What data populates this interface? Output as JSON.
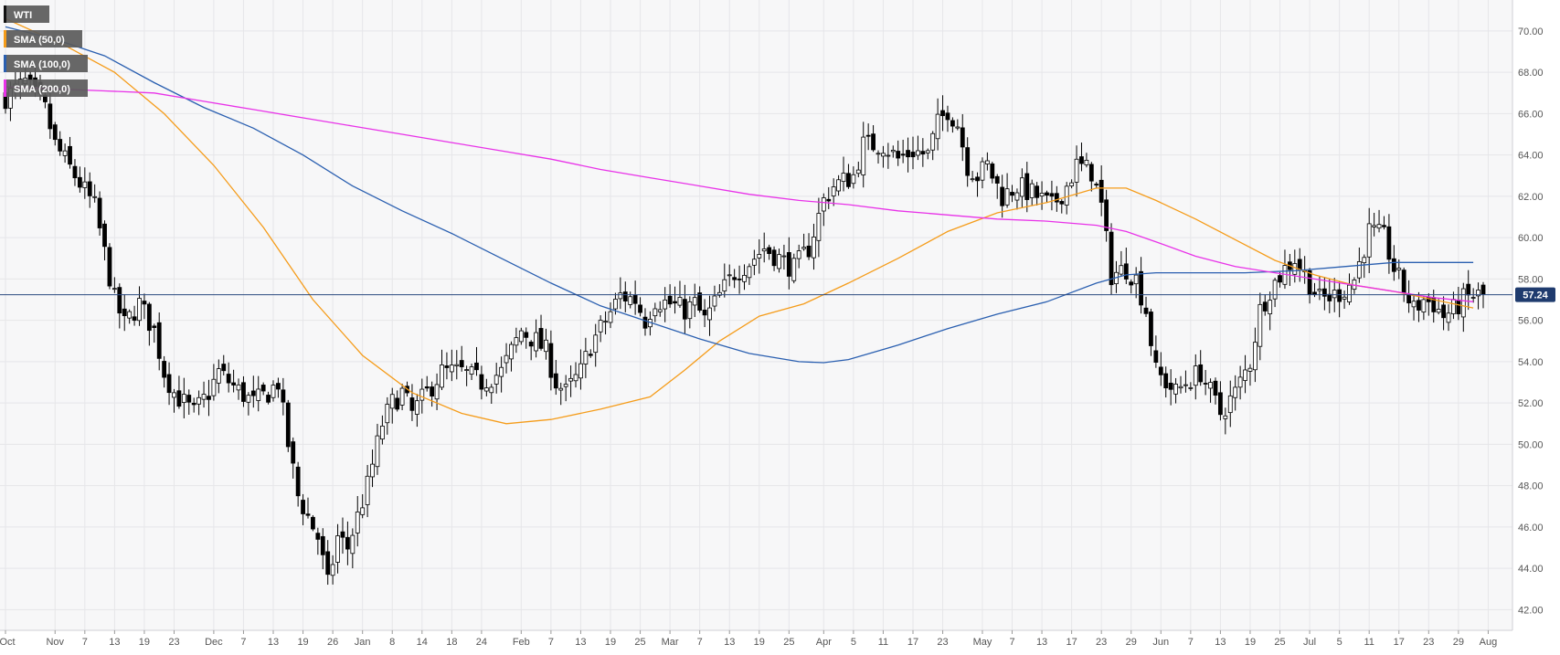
{
  "colors": {
    "background": "#f7f7f8",
    "grid": "#e6e6e9",
    "candle_up": "#ffffff",
    "candle_down": "#000000",
    "wick": "#000000",
    "sma50": "#f59c1a",
    "sma100": "#2a5fb0",
    "sma200": "#e832e8",
    "price_line": "#2b4a80",
    "price_badge": "#1f3b6e",
    "legend_box": "#5a5a5a"
  },
  "legend": [
    {
      "label": "WTI",
      "color": "#111111"
    },
    {
      "label": "SMA (50,0)",
      "color": "#f59c1a"
    },
    {
      "label": "SMA (100,0)",
      "color": "#2a5fb0"
    },
    {
      "label": "SMA (200,0)",
      "color": "#e832e8"
    }
  ],
  "price_badge": "57.24",
  "chart_data": {
    "type": "candlestick",
    "title": "",
    "xlabel": "",
    "ylabel": "",
    "ylim": [
      41,
      71.5
    ],
    "x_index_range": [
      0,
      298
    ],
    "y_ticks": [
      "42.00",
      "44.00",
      "46.00",
      "48.00",
      "50.00",
      "52.00",
      "54.00",
      "56.00",
      "58.00",
      "60.00",
      "62.00",
      "64.00",
      "66.00",
      "68.00",
      "70.00"
    ],
    "x_ticks": [
      {
        "label": "Oct",
        "i": 0
      },
      {
        "label": "Nov",
        "i": 10
      },
      {
        "label": "7",
        "i": 16
      },
      {
        "label": "13",
        "i": 22
      },
      {
        "label": "19",
        "i": 28
      },
      {
        "label": "23",
        "i": 34
      },
      {
        "label": "Dec",
        "i": 42
      },
      {
        "label": "7",
        "i": 48
      },
      {
        "label": "13",
        "i": 54
      },
      {
        "label": "19",
        "i": 60
      },
      {
        "label": "26",
        "i": 66
      },
      {
        "label": "Jan",
        "i": 72
      },
      {
        "label": "8",
        "i": 78
      },
      {
        "label": "14",
        "i": 84
      },
      {
        "label": "18",
        "i": 90
      },
      {
        "label": "24",
        "i": 96
      },
      {
        "label": "Feb",
        "i": 104
      },
      {
        "label": "7",
        "i": 110
      },
      {
        "label": "13",
        "i": 116
      },
      {
        "label": "19",
        "i": 122
      },
      {
        "label": "25",
        "i": 128
      },
      {
        "label": "Mar",
        "i": 134
      },
      {
        "label": "7",
        "i": 140
      },
      {
        "label": "13",
        "i": 146
      },
      {
        "label": "19",
        "i": 152
      },
      {
        "label": "25",
        "i": 158
      },
      {
        "label": "Apr",
        "i": 165
      },
      {
        "label": "5",
        "i": 171
      },
      {
        "label": "11",
        "i": 177
      },
      {
        "label": "17",
        "i": 183
      },
      {
        "label": "23",
        "i": 189
      },
      {
        "label": "May",
        "i": 197
      },
      {
        "label": "7",
        "i": 203
      },
      {
        "label": "13",
        "i": 209
      },
      {
        "label": "17",
        "i": 215
      },
      {
        "label": "23",
        "i": 221
      },
      {
        "label": "29",
        "i": 227
      },
      {
        "label": "Jun",
        "i": 233
      },
      {
        "label": "7",
        "i": 239
      },
      {
        "label": "13",
        "i": 245
      },
      {
        "label": "19",
        "i": 251
      },
      {
        "label": "25",
        "i": 257
      },
      {
        "label": "Jul",
        "i": 263
      },
      {
        "label": "5",
        "i": 269
      },
      {
        "label": "11",
        "i": 275
      },
      {
        "label": "17",
        "i": 281
      },
      {
        "label": "23",
        "i": 287
      },
      {
        "label": "29",
        "i": 293
      },
      {
        "label": "Aug",
        "i": 299
      }
    ],
    "last_price": 57.24,
    "candles_anchor": {
      "close_path": [
        [
          0,
          66.8
        ],
        [
          4,
          67.5
        ],
        [
          8,
          66.2
        ],
        [
          10,
          64.5
        ],
        [
          14,
          63.0
        ],
        [
          18,
          61.5
        ],
        [
          22,
          57.0
        ],
        [
          24,
          55.8
        ],
        [
          27,
          56.8
        ],
        [
          30,
          55.5
        ],
        [
          32,
          53.5
        ],
        [
          34,
          52.5
        ],
        [
          38,
          51.5
        ],
        [
          41,
          52.5
        ],
        [
          43,
          53.5
        ],
        [
          46,
          52.8
        ],
        [
          50,
          52.0
        ],
        [
          53,
          52.5
        ],
        [
          55,
          53.0
        ],
        [
          57,
          50.0
        ],
        [
          59,
          47.5
        ],
        [
          61,
          46.5
        ],
        [
          63,
          45.5
        ],
        [
          65,
          43.2
        ],
        [
          67,
          45.5
        ],
        [
          69,
          45.0
        ],
        [
          71,
          46.5
        ],
        [
          73,
          48.0
        ],
        [
          76,
          51.0
        ],
        [
          78,
          52.0
        ],
        [
          80,
          52.5
        ],
        [
          82,
          51.5
        ],
        [
          85,
          52.5
        ],
        [
          88,
          53.5
        ],
        [
          92,
          53.5
        ],
        [
          96,
          53.0
        ],
        [
          100,
          53.5
        ],
        [
          104,
          55.5
        ],
        [
          107,
          55.0
        ],
        [
          109,
          54.5
        ],
        [
          111,
          53.0
        ],
        [
          113,
          52.5
        ],
        [
          116,
          53.5
        ],
        [
          118,
          54.8
        ],
        [
          121,
          56.0
        ],
        [
          124,
          57.2
        ],
        [
          127,
          57.0
        ],
        [
          129,
          56.0
        ],
        [
          131,
          57.0
        ],
        [
          134,
          56.8
        ],
        [
          137,
          56.5
        ],
        [
          139,
          56.8
        ],
        [
          141,
          56.0
        ],
        [
          144,
          57.2
        ],
        [
          147,
          58.3
        ],
        [
          150,
          58.8
        ],
        [
          153,
          59.5
        ],
        [
          156,
          59.0
        ],
        [
          159,
          58.5
        ],
        [
          162,
          59.5
        ],
        [
          165,
          61.8
        ],
        [
          167,
          62.5
        ],
        [
          171,
          63.0
        ],
        [
          173,
          64.5
        ],
        [
          177,
          64.5
        ],
        [
          180,
          63.8
        ],
        [
          183,
          64.2
        ],
        [
          186,
          64.0
        ],
        [
          188,
          65.5
        ],
        [
          190,
          66.2
        ],
        [
          192,
          65.5
        ],
        [
          194,
          63.5
        ],
        [
          196,
          63.0
        ],
        [
          198,
          63.5
        ],
        [
          201,
          62.0
        ],
        [
          204,
          62.5
        ],
        [
          208,
          62.0
        ],
        [
          211,
          61.5
        ],
        [
          214,
          62.5
        ],
        [
          216,
          63.5
        ],
        [
          219,
          63.2
        ],
        [
          221,
          61.5
        ],
        [
          223,
          58.2
        ],
        [
          226,
          58.5
        ],
        [
          228,
          58.0
        ],
        [
          230,
          56.5
        ],
        [
          232,
          53.5
        ],
        [
          234,
          53.0
        ],
        [
          236,
          52.5
        ],
        [
          238,
          53.0
        ],
        [
          241,
          53.5
        ],
        [
          243,
          52.5
        ],
        [
          245,
          51.5
        ],
        [
          248,
          52.5
        ],
        [
          251,
          54.0
        ],
        [
          253,
          56.5
        ],
        [
          255,
          57.5
        ],
        [
          258,
          58.5
        ],
        [
          260,
          59.0
        ],
        [
          263,
          57.8
        ],
        [
          265,
          57.0
        ],
        [
          268,
          57.2
        ],
        [
          270,
          57.5
        ],
        [
          272,
          58.0
        ],
        [
          275,
          60.3
        ],
        [
          278,
          60.0
        ],
        [
          280,
          58.5
        ],
        [
          282,
          57.5
        ],
        [
          284,
          56.5
        ],
        [
          286,
          57.0
        ],
        [
          288,
          56.8
        ],
        [
          290,
          56.2
        ],
        [
          292,
          56.5
        ],
        [
          294,
          57.0
        ],
        [
          296,
          57.2
        ]
      ]
    },
    "series": [
      {
        "name": "SMA (50,0)",
        "points": [
          [
            0,
            70.6
          ],
          [
            12,
            69.3
          ],
          [
            22,
            68.0
          ],
          [
            32,
            66.0
          ],
          [
            42,
            63.5
          ],
          [
            52,
            60.5
          ],
          [
            62,
            57.0
          ],
          [
            72,
            54.3
          ],
          [
            82,
            52.5
          ],
          [
            92,
            51.5
          ],
          [
            101,
            51.0
          ],
          [
            110,
            51.2
          ],
          [
            120,
            51.7
          ],
          [
            130,
            52.3
          ],
          [
            137,
            53.6
          ],
          [
            144,
            55.0
          ],
          [
            152,
            56.2
          ],
          [
            161,
            56.8
          ],
          [
            170,
            57.8
          ],
          [
            180,
            59.0
          ],
          [
            190,
            60.3
          ],
          [
            200,
            61.2
          ],
          [
            210,
            61.7
          ],
          [
            220,
            62.4
          ],
          [
            226,
            62.4
          ],
          [
            232,
            61.8
          ],
          [
            240,
            60.9
          ],
          [
            248,
            59.9
          ],
          [
            256,
            58.9
          ],
          [
            264,
            58.2
          ],
          [
            272,
            57.7
          ],
          [
            280,
            57.4
          ],
          [
            288,
            57.0
          ],
          [
            296,
            56.6
          ]
        ]
      },
      {
        "name": "SMA (100,0)",
        "points": [
          [
            0,
            70.2
          ],
          [
            10,
            69.6
          ],
          [
            20,
            68.8
          ],
          [
            30,
            67.5
          ],
          [
            40,
            66.3
          ],
          [
            50,
            65.3
          ],
          [
            60,
            64.0
          ],
          [
            70,
            62.5
          ],
          [
            80,
            61.3
          ],
          [
            90,
            60.2
          ],
          [
            100,
            59.0
          ],
          [
            110,
            57.8
          ],
          [
            120,
            56.7
          ],
          [
            130,
            55.9
          ],
          [
            140,
            55.1
          ],
          [
            150,
            54.4
          ],
          [
            160,
            54.0
          ],
          [
            165,
            53.95
          ],
          [
            170,
            54.1
          ],
          [
            180,
            54.8
          ],
          [
            190,
            55.6
          ],
          [
            200,
            56.3
          ],
          [
            210,
            56.9
          ],
          [
            220,
            57.8
          ],
          [
            226,
            58.2
          ],
          [
            232,
            58.3
          ],
          [
            240,
            58.3
          ],
          [
            250,
            58.3
          ],
          [
            260,
            58.4
          ],
          [
            270,
            58.6
          ],
          [
            280,
            58.8
          ],
          [
            290,
            58.8
          ],
          [
            296,
            58.8
          ]
        ]
      },
      {
        "name": "SMA (200,0)",
        "points": [
          [
            0,
            67.3
          ],
          [
            10,
            67.2
          ],
          [
            20,
            67.1
          ],
          [
            30,
            67.0
          ],
          [
            40,
            66.6
          ],
          [
            50,
            66.2
          ],
          [
            60,
            65.8
          ],
          [
            70,
            65.4
          ],
          [
            80,
            65.0
          ],
          [
            90,
            64.6
          ],
          [
            100,
            64.2
          ],
          [
            110,
            63.8
          ],
          [
            120,
            63.3
          ],
          [
            130,
            62.9
          ],
          [
            140,
            62.5
          ],
          [
            150,
            62.1
          ],
          [
            160,
            61.8
          ],
          [
            170,
            61.6
          ],
          [
            180,
            61.3
          ],
          [
            190,
            61.1
          ],
          [
            200,
            60.9
          ],
          [
            210,
            60.8
          ],
          [
            220,
            60.6
          ],
          [
            226,
            60.3
          ],
          [
            232,
            59.8
          ],
          [
            240,
            59.1
          ],
          [
            248,
            58.6
          ],
          [
            256,
            58.3
          ],
          [
            264,
            58.0
          ],
          [
            272,
            57.7
          ],
          [
            280,
            57.4
          ],
          [
            288,
            57.1
          ],
          [
            296,
            56.9
          ]
        ]
      }
    ]
  }
}
